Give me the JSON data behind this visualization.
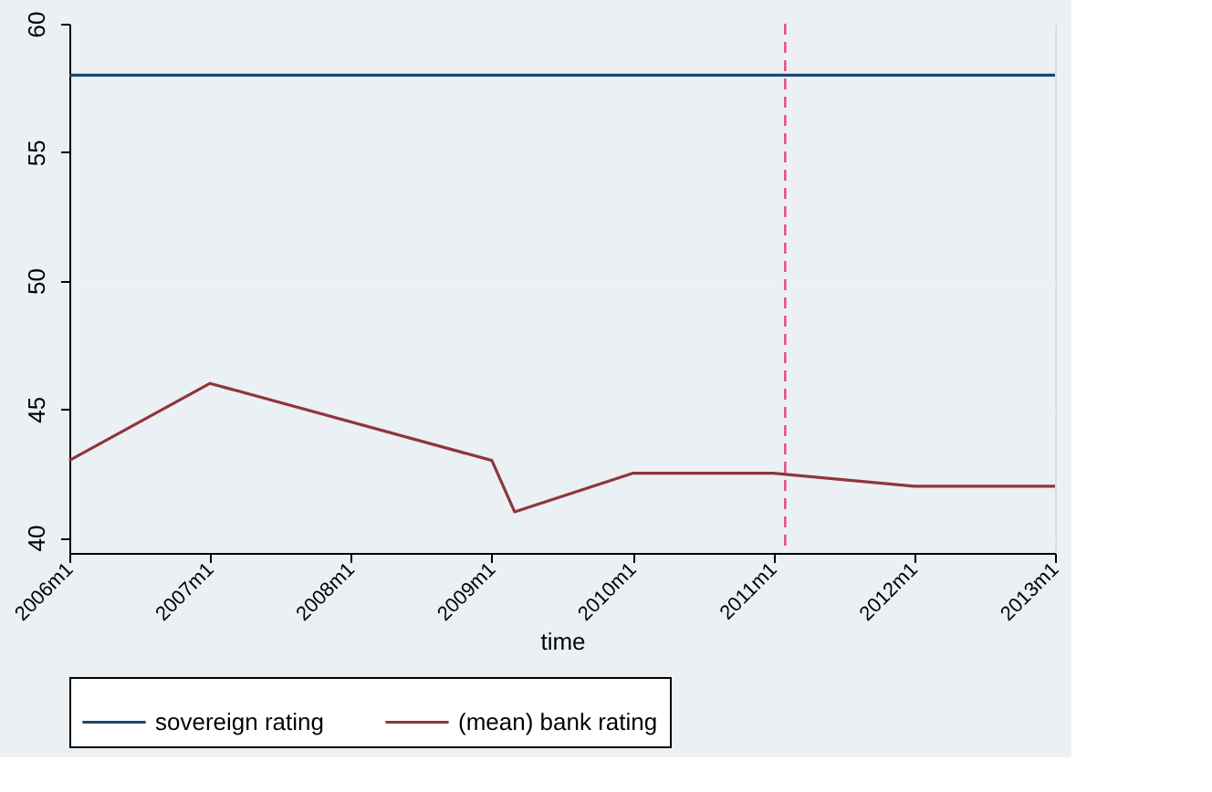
{
  "chart_data": {
    "type": "line",
    "xlabel": "time",
    "xlim": [
      "2006-01",
      "2013-01"
    ],
    "xticks": [
      {
        "value": "2006-01",
        "label": "2006m1"
      },
      {
        "value": "2007-01",
        "label": "2007m1"
      },
      {
        "value": "2008-01",
        "label": "2008m1"
      },
      {
        "value": "2009-01",
        "label": "2009m1"
      },
      {
        "value": "2010-01",
        "label": "2010m1"
      },
      {
        "value": "2011-01",
        "label": "2011m1"
      },
      {
        "value": "2012-01",
        "label": "2012m1"
      },
      {
        "value": "2013-01",
        "label": "2013m1"
      }
    ],
    "ylim": [
      39.4,
      60
    ],
    "yticks": [
      40,
      45,
      50,
      55,
      60
    ],
    "series": [
      {
        "name": "sovereign rating",
        "color": "#1a476f",
        "x": [
          "2006-01",
          "2013-01"
        ],
        "values": [
          58,
          58
        ]
      },
      {
        "name": "(mean) bank rating",
        "color": "#90353b",
        "x": [
          "2006-01",
          "2007-01",
          "2009-01",
          "2009-03",
          "2010-01",
          "2011-01",
          "2012-01",
          "2013-01"
        ],
        "values": [
          43,
          46,
          43,
          41,
          42.5,
          42.5,
          42,
          42
        ]
      }
    ],
    "ref_lines": [
      {
        "axis": "x",
        "value": "2011-02",
        "color": "#e8457a",
        "line_style": "dashed"
      }
    ],
    "grid": "y",
    "legend": "bottom",
    "line_style": "solid",
    "marker": "none"
  }
}
